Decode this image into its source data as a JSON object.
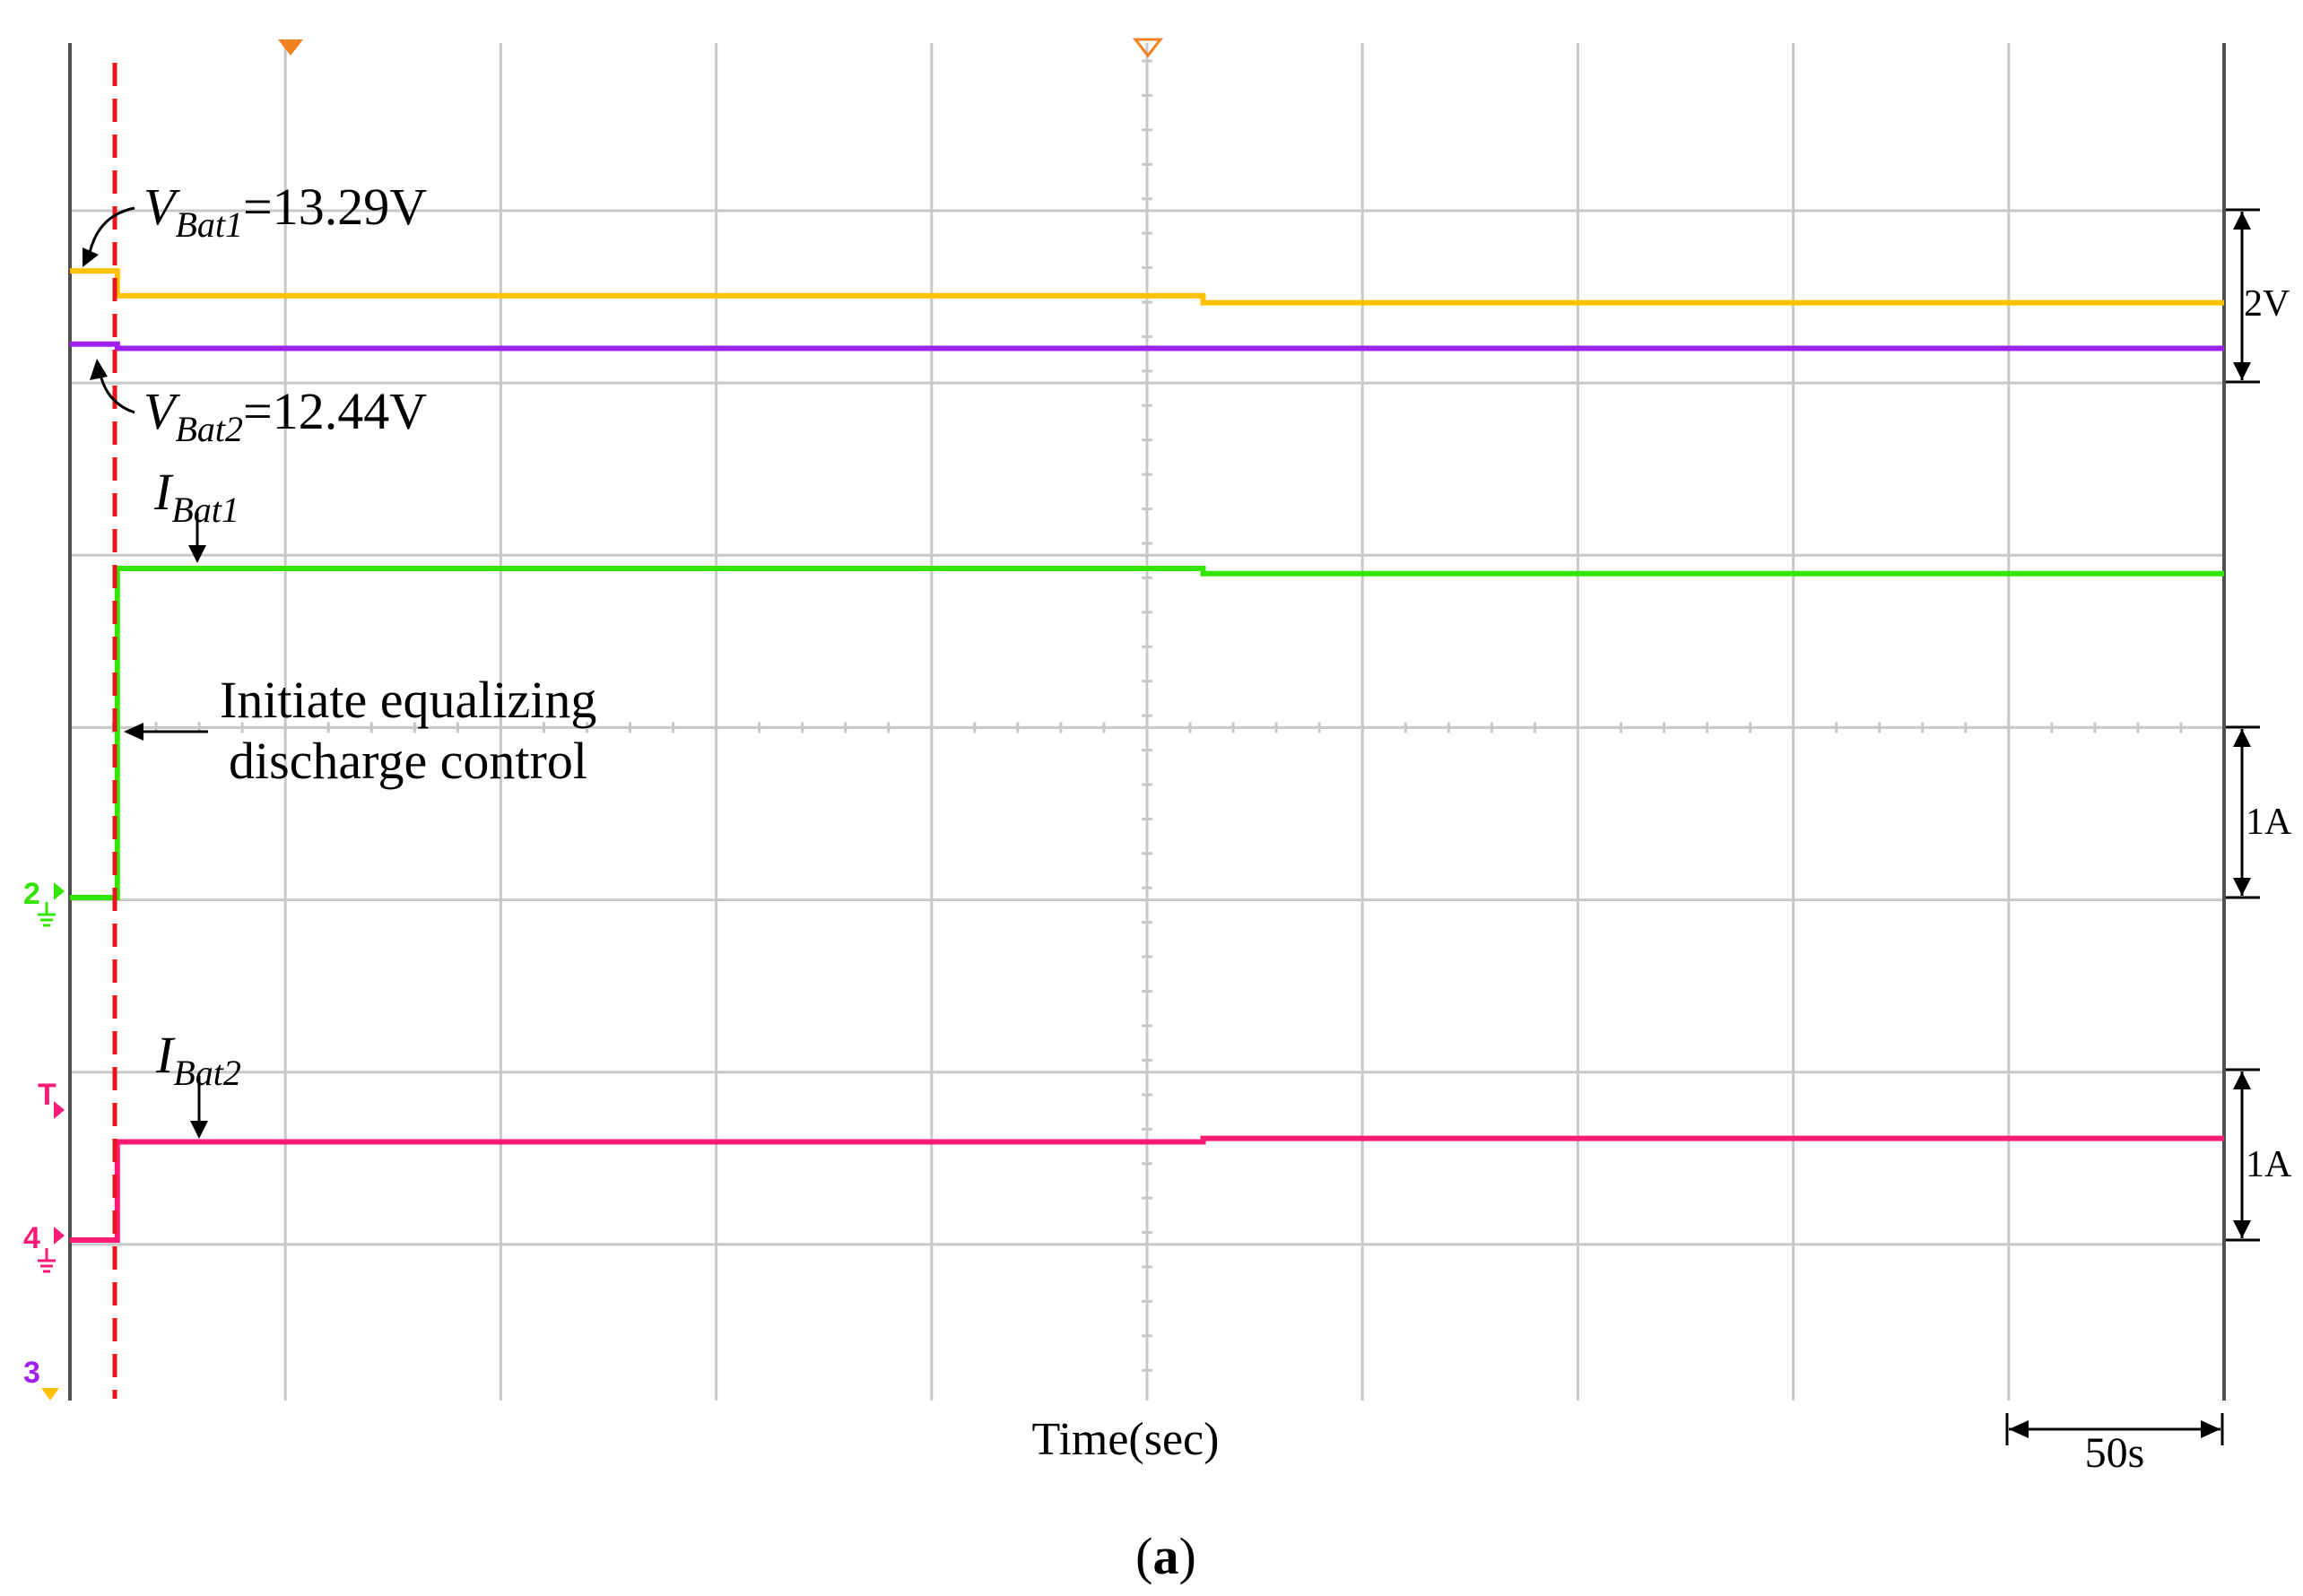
{
  "chart_data": {
    "type": "line",
    "title": "",
    "xlabel": "Time(sec)",
    "caption": "a",
    "time_scale_label": "50s",
    "grid": true,
    "x_divisions": 10,
    "y_divisions": 8,
    "x_range_sec": [
      0,
      500
    ],
    "series": [
      {
        "name": "V_Bat1",
        "color": "#ffc000",
        "unit": "V",
        "scale_per_div": 2,
        "points": [
          [
            0,
            13.29
          ],
          [
            10,
            13.29
          ],
          [
            11,
            13.0
          ],
          [
            262,
            13.0
          ],
          [
            263,
            12.92
          ],
          [
            500,
            12.92
          ]
        ]
      },
      {
        "name": "V_Bat2",
        "color": "#a020f0",
        "unit": "V",
        "scale_per_div": 2,
        "points": [
          [
            0,
            12.44
          ],
          [
            10,
            12.44
          ],
          [
            11,
            12.39
          ],
          [
            500,
            12.39
          ]
        ]
      },
      {
        "name": "I_Bat1",
        "color": "#33e600",
        "unit": "A",
        "scale_per_div": 1,
        "points": [
          [
            0,
            0.0
          ],
          [
            10,
            0.0
          ],
          [
            11,
            1.91
          ],
          [
            262,
            1.91
          ],
          [
            263,
            1.88
          ],
          [
            500,
            1.88
          ]
        ]
      },
      {
        "name": "I_Bat2",
        "color": "#ff1a75",
        "unit": "A",
        "scale_per_div": 1,
        "points": [
          [
            0,
            0.0
          ],
          [
            10,
            0.0
          ],
          [
            11,
            0.57
          ],
          [
            262,
            0.57
          ],
          [
            263,
            0.59
          ],
          [
            500,
            0.59
          ]
        ]
      }
    ],
    "annotations": {
      "vbat1": {
        "main": "V",
        "sub": "Bat1",
        "value": "=13.29V"
      },
      "vbat2": {
        "main": "V",
        "sub": "Bat2",
        "value": "=12.44V"
      },
      "ibat1": {
        "main": "I",
        "sub": "Bat1"
      },
      "ibat2": {
        "main": "I",
        "sub": "Bat2"
      },
      "initiate_line1": "Initiate equalizing",
      "initiate_line2": "discharge control"
    },
    "scale_labels": {
      "voltage": "2V",
      "current1": "1A",
      "current2": "1A"
    },
    "channel_markers": {
      "ch2": "2",
      "ch4": "4",
      "ch3": "3",
      "trigger": "T"
    },
    "colors": {
      "grid": "#c8c8c8",
      "axis": "#505050",
      "trigger_line": "#e8161c",
      "marker_orange": "#f08020"
    }
  }
}
